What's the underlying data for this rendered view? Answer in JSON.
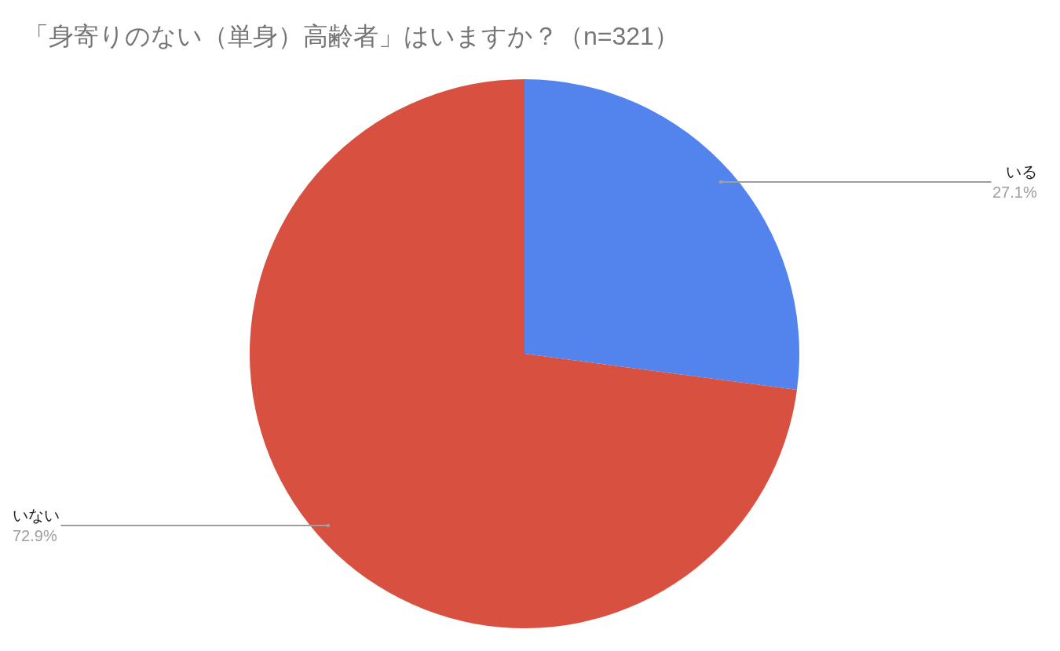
{
  "chart_data": {
    "type": "pie",
    "title": "「身寄りのない（単身）高齢者」はいますか？（n=321）",
    "categories": [
      "いる",
      "いない"
    ],
    "values": [
      27.1,
      72.9
    ],
    "colors": [
      "#5383ec",
      "#d85140"
    ],
    "value_labels": [
      "27.1%",
      "72.9%"
    ],
    "legend": false
  }
}
